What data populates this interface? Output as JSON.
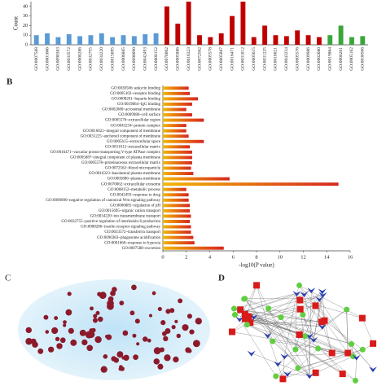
{
  "panel_labels": {
    "b": "B",
    "c": "C",
    "d": "D"
  },
  "chart_data": [
    {
      "type": "bar",
      "ylabel": "Count",
      "categories": [
        "GO:0007588",
        "GO:0001666",
        "GO:0090383",
        "GO:0033572",
        "GO:0008286",
        "GO:0032755",
        "GO:0034220",
        "GO:0015695",
        "GO:0006885",
        "GO:0090090",
        "GO:0042493",
        "GO:0008152",
        "GO:0070062",
        "GO:0005886",
        "GO:0016323",
        "GO:0072562",
        "GO:0005578",
        "GO:0005887",
        "GO:0016471",
        "GO:0031012",
        "GO:0005615",
        "GO:0031225",
        "GO:0016021",
        "GO:0043234",
        "GO:0005576",
        "GO:0009986",
        "GO:0002080",
        "GO:0019864",
        "GO:0008201",
        "GO:0005102",
        "GO:0030506"
      ],
      "values": [
        10,
        12,
        8,
        11,
        9,
        10,
        12,
        8,
        10,
        9,
        11,
        12,
        40,
        22,
        45,
        10,
        8,
        12,
        30,
        45,
        8,
        20,
        10,
        9,
        15,
        10,
        8,
        10,
        20,
        8,
        9
      ],
      "bar_colors": [
        "#5b9bd5",
        "#5b9bd5",
        "#5b9bd5",
        "#5b9bd5",
        "#5b9bd5",
        "#5b9bd5",
        "#5b9bd5",
        "#5b9bd5",
        "#5b9bd5",
        "#5b9bd5",
        "#5b9bd5",
        "#5b9bd5",
        "#c00000",
        "#c00000",
        "#c00000",
        "#c00000",
        "#c00000",
        "#c00000",
        "#c00000",
        "#c00000",
        "#c00000",
        "#c00000",
        "#c00000",
        "#c00000",
        "#c00000",
        "#c00000",
        "#c00000",
        "#3aa53a",
        "#3aa53a",
        "#3aa53a",
        "#3aa53a"
      ],
      "ylim": [
        0,
        45
      ],
      "yticks": [
        0,
        10,
        20,
        30,
        40
      ]
    },
    {
      "type": "hbar",
      "xlabel": "-log10(P value)",
      "categories": [
        "GO:0030506~ankyrin binding",
        "GO:0005102~receptor binding",
        "GO:0008201~heparin binding",
        "GO:0019864~IgG binding",
        "GO:0002080~acrosomal membrane",
        "GO:0009986~cell surface",
        "GO:0005576~extracellular region",
        "GO:0043234~protein complex",
        "GO:0016021~integral component of membrane",
        "GO:0031225~anchored component of membrane",
        "GO:0005615~extracellular space",
        "GO:0031012~extracellular matrix",
        "GO:0016471~vacuolar proton-transporting V-type ATPase complex",
        "GO:0005887~integral component of plasma membrane",
        "GO:0005578~proteinaceous extracellular matrix",
        "GO:0072562~blood microparticle",
        "GO:0016323~basolateral plasma membrane",
        "GO:0005886~plasma membrane",
        "GO:0070062~extracellular exosome",
        "GO:0008152~metabolic process",
        "GO:0042493~response to drug",
        "GO:0090090~negative regulation of canonical Wnt signaling pathway",
        "GO:0006885~regulation of pH",
        "GO:0015695~organic cation transport",
        "GO:0034220~ion transmembrane transport",
        "GO:0032755~positive regulation of interleukin-6 production",
        "GO:0008286~insulin receptor signaling pathway",
        "GO:0033572~transferrin transport",
        "GO:0090383~phagosome acidification",
        "GO:0001666~response to hypoxia",
        "GO:0007588~excretion"
      ],
      "values": [
        2.2,
        2.3,
        3,
        2.5,
        2,
        2.5,
        3.5,
        2,
        2,
        2.2,
        3.5,
        2.3,
        2.5,
        2.5,
        2.5,
        2.4,
        2.6,
        5.7,
        15,
        2,
        2.2,
        2.2,
        2.3,
        2.3,
        2.4,
        2.3,
        2.4,
        2.4,
        2.6,
        2.7,
        5.2
      ],
      "gradient": [
        "#f2b705",
        "#d7261e"
      ],
      "xlim": [
        0,
        16
      ],
      "xticks": [
        0,
        2,
        4,
        6,
        8,
        10,
        12,
        14,
        16
      ]
    }
  ]
}
